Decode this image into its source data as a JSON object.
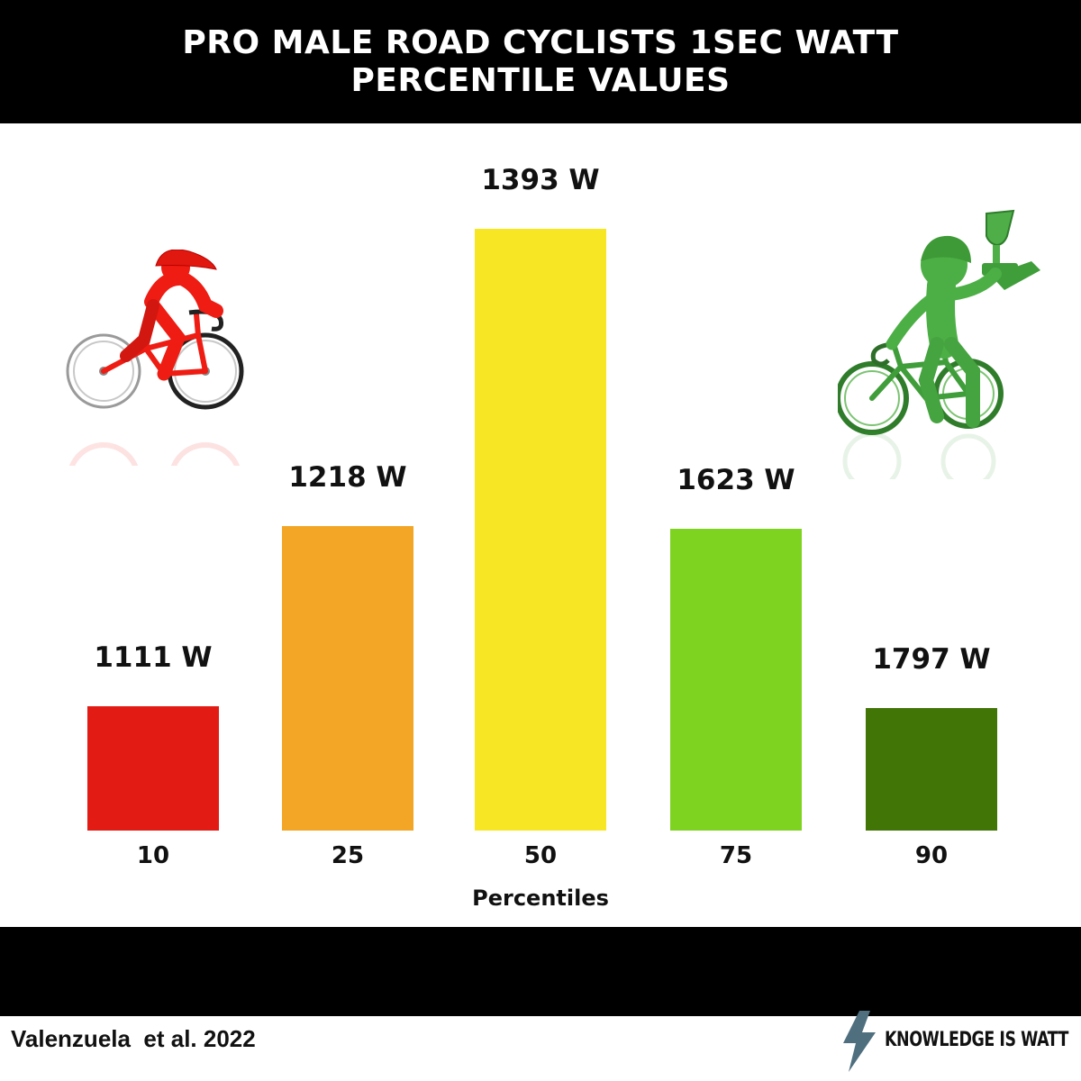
{
  "colors": {
    "header_bg": "#000000",
    "bar_colors": [
      "#e21b14",
      "#f3a526",
      "#f7e624",
      "#7ed321",
      "#417505"
    ],
    "cyclist_low": "#ee1c12",
    "cyclist_high": "#3f9e3a",
    "bolt": "#4f6f7f"
  },
  "chart_data": {
    "type": "bar",
    "title": "PRO MALE ROAD CYCLISTS 1SEC WATT\nPERCENTILE VALUES",
    "xlabel": "Percentiles",
    "ylabel": "",
    "categories": [
      "10",
      "25",
      "50",
      "75",
      "90"
    ],
    "values": [
      1111,
      1218,
      1393,
      1623,
      1797
    ],
    "value_labels": [
      "1111 W",
      "1218 W",
      "1393 W",
      "1623 W",
      "1797 W"
    ],
    "bar_heights_relative": [
      0.206,
      0.506,
      1.0,
      0.502,
      0.204
    ],
    "grid": false,
    "legend": "none"
  },
  "illustrations": {
    "left": "red-cyclist-riding-icon",
    "right": "green-cyclist-trophy-icon"
  },
  "footer": {
    "source": "Valenzuela  et al. 2022",
    "brand": "KNOWLEDGE IS WATT",
    "brand_icon": "lightning-bolt-icon"
  }
}
